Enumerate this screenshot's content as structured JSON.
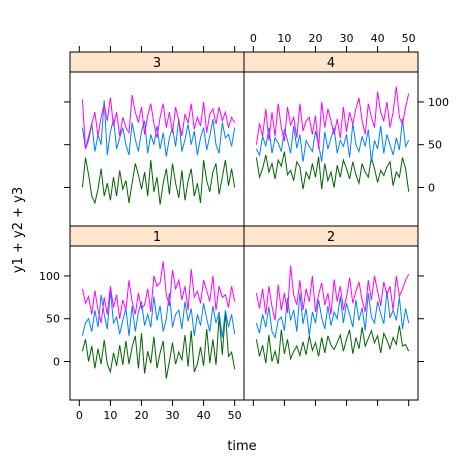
{
  "chart_data": {
    "type": "line",
    "xlabel": "time",
    "ylabel": "y1 + y2 + y3",
    "xlim": [
      -3,
      53
    ],
    "ylim": [
      -45,
      135
    ],
    "x_ticks": [
      0,
      10,
      20,
      30,
      40,
      50
    ],
    "y_ticks": [
      0,
      50,
      100
    ],
    "colors": {
      "strip_bg": "#FFE5CC",
      "y1": "#006400",
      "y2": "#0080FF",
      "y3": "#FF00FF",
      "axis": "#000000"
    },
    "x": [
      1,
      2,
      3,
      4,
      5,
      6,
      7,
      8,
      9,
      10,
      11,
      12,
      13,
      14,
      15,
      16,
      17,
      18,
      19,
      20,
      21,
      22,
      23,
      24,
      25,
      26,
      27,
      28,
      29,
      30,
      31,
      32,
      33,
      34,
      35,
      36,
      37,
      38,
      39,
      40,
      41,
      42,
      43,
      44,
      45,
      46,
      47,
      48,
      49,
      50
    ],
    "panels": [
      {
        "label": "1",
        "series": [
          {
            "key": "y1",
            "values": [
              12,
              26,
              0,
              18,
              -8,
              15,
              -3,
              25,
              -3,
              -12,
              10,
              -5,
              19,
              -4,
              24,
              -3,
              17,
              30,
              -8,
              33,
              -14,
              12,
              -2,
              29,
              -8,
              10,
              24,
              -20,
              0,
              22,
              -3,
              11,
              2,
              31,
              -6,
              36,
              -12,
              -3,
              17,
              -5,
              38,
              -2,
              26,
              -4,
              53,
              8,
              58,
              6,
              11,
              -9
            ]
          },
          {
            "key": "y2",
            "values": [
              30,
              45,
              50,
              35,
              60,
              40,
              78,
              55,
              38,
              83,
              45,
              52,
              32,
              48,
              62,
              30,
              65,
              35,
              58,
              70,
              42,
              55,
              40,
              76,
              48,
              65,
              35,
              50,
              80,
              40,
              55,
              60,
              38,
              70,
              47,
              62,
              30,
              55,
              42,
              68,
              50,
              35,
              65,
              45,
              58,
              28,
              60,
              40,
              55,
              32
            ]
          },
          {
            "key": "y3",
            "values": [
              85,
              68,
              76,
              55,
              83,
              60,
              45,
              75,
              55,
              88,
              63,
              78,
              50,
              72,
              60,
              95,
              70,
              55,
              80,
              62,
              66,
              85,
              58,
              100,
              88,
              92,
              117,
              78,
              65,
              107,
              85,
              95,
              72,
              88,
              60,
              108,
              75,
              82,
              68,
              95,
              83,
              70,
              100,
              60,
              88,
              75,
              78,
              63,
              88,
              70
            ]
          }
        ]
      },
      {
        "label": "2",
        "series": [
          {
            "key": "y1",
            "values": [
              26,
              6,
              19,
              -2,
              31,
              0,
              12,
              -3,
              37,
              9,
              26,
              3,
              12,
              18,
              7,
              23,
              8,
              30,
              13,
              22,
              6,
              28,
              10,
              30,
              19,
              14,
              22,
              31,
              12,
              26,
              37,
              9,
              28,
              15,
              40,
              18,
              27,
              36,
              22,
              30,
              10,
              33,
              25,
              15,
              28,
              20,
              42,
              18,
              20,
              12
            ]
          },
          {
            "key": "y2",
            "values": [
              45,
              33,
              55,
              40,
              64,
              35,
              28,
              48,
              52,
              36,
              74,
              48,
              60,
              35,
              80,
              44,
              62,
              30,
              58,
              45,
              72,
              51,
              38,
              65,
              42,
              58,
              50,
              76,
              45,
              68,
              55,
              40,
              72,
              48,
              63,
              36,
              80,
              52,
              45,
              70,
              56,
              44,
              82,
              51,
              60,
              48,
              75,
              38,
              62,
              45
            ]
          },
          {
            "key": "y3",
            "values": [
              80,
              62,
              85,
              55,
              88,
              64,
              48,
              90,
              60,
              80,
              57,
              112,
              78,
              66,
              95,
              60,
              85,
              70,
              100,
              58,
              78,
              92,
              66,
              80,
              55,
              96,
              70,
              88,
              60,
              75,
              98,
              68,
              82,
              93,
              72,
              58,
              95,
              72,
              100,
              82,
              65,
              93,
              78,
              88,
              60,
              100,
              76,
              85,
              95,
              102
            ]
          }
        ]
      },
      {
        "label": "3",
        "series": [
          {
            "key": "y1",
            "values": [
              0,
              35,
              15,
              -10,
              -18,
              -2,
              22,
              -10,
              5,
              -15,
              12,
              -10,
              20,
              -2,
              8,
              -18,
              5,
              28,
              15,
              -2,
              18,
              -10,
              32,
              -5,
              12,
              -20,
              5,
              22,
              -8,
              28,
              5,
              -12,
              20,
              -15,
              8,
              22,
              -10,
              5,
              -18,
              32,
              8,
              -5,
              18,
              28,
              -8,
              12,
              32,
              2,
              22,
              0
            ]
          },
          {
            "key": "y2",
            "values": [
              70,
              45,
              55,
              75,
              42,
              62,
              50,
              102,
              38,
              65,
              80,
              45,
              58,
              70,
              50,
              38,
              76,
              56,
              42,
              66,
              78,
              40,
              62,
              50,
              72,
              45,
              64,
              36,
              58,
              70,
              48,
              80,
              42,
              56,
              74,
              50,
              66,
              38,
              58,
              70,
              44,
              60,
              80,
              50,
              40,
              76,
              58,
              62,
              48,
              70
            ]
          },
          {
            "key": "y3",
            "values": [
              103,
              45,
              60,
              75,
              88,
              60,
              82,
              97,
              78,
              105,
              72,
              88,
              60,
              82,
              70,
              64,
              108,
              88,
              76,
              94,
              62,
              84,
              98,
              75,
              58,
              82,
              98,
              70,
              88,
              64,
              94,
              78,
              60,
              86,
              75,
              98,
              68,
              82,
              72,
              100,
              64,
              86,
              92,
              74,
              94,
              78,
              88,
              70,
              82,
              76
            ]
          }
        ]
      },
      {
        "label": "4",
        "series": [
          {
            "key": "y1",
            "values": [
              35,
              12,
              22,
              38,
              18,
              28,
              10,
              32,
              25,
              42,
              15,
              20,
              8,
              30,
              24,
              -2,
              18,
              10,
              28,
              12,
              36,
              -2,
              28,
              8,
              18,
              0,
              26,
              12,
              32,
              22,
              10,
              30,
              15,
              5,
              28,
              18,
              12,
              35,
              22,
              6,
              20,
              14,
              24,
              30,
              2,
              18,
              12,
              35,
              22,
              -5
            ]
          },
          {
            "key": "y2",
            "values": [
              45,
              38,
              60,
              48,
              70,
              40,
              58,
              52,
              42,
              68,
              55,
              40,
              72,
              46,
              62,
              30,
              55,
              48,
              42,
              66,
              50,
              30,
              65,
              45,
              58,
              70,
              40,
              55,
              48,
              62,
              35,
              75,
              50,
              42,
              60,
              48,
              68,
              30,
              55,
              45,
              72,
              40,
              62,
              50,
              38,
              58,
              44,
              80,
              48,
              55
            ]
          },
          {
            "key": "y3",
            "values": [
              50,
              75,
              60,
              92,
              55,
              88,
              60,
              98,
              70,
              54,
              94,
              73,
              82,
              58,
              98,
              66,
              78,
              82,
              62,
              84,
              45,
              100,
              70,
              92,
              78,
              62,
              80,
              58,
              94,
              65,
              88,
              74,
              92,
              105,
              78,
              62,
              98,
              82,
              70,
              112,
              88,
              78,
              100,
              70,
              88,
              118,
              82,
              74,
              94,
              110
            ]
          }
        ]
      }
    ]
  }
}
